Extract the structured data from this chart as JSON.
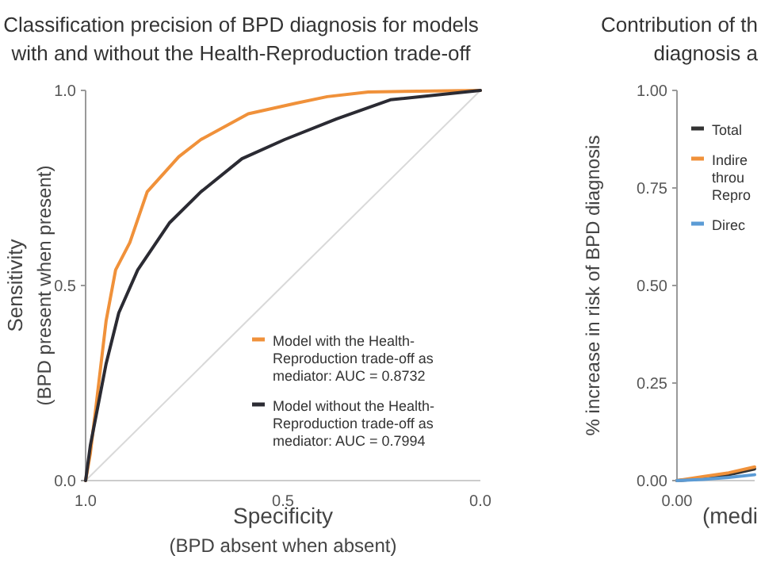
{
  "chart_data": [
    {
      "type": "line",
      "title": "Classification precision of BPD diagnosis for models\nwith and without the Health-Reproduction trade-off",
      "xlabel": "Specificity\n(BPD absent when absent)",
      "ylabel": "Sensitivity\n(BPD present when present)",
      "xlim": [
        1,
        0
      ],
      "xticks": [
        {
          "value": 1,
          "label": "1.0"
        },
        {
          "value": 0.5,
          "label": "0.5"
        },
        {
          "value": 0,
          "label": "0.0"
        }
      ],
      "ylim": [
        0,
        1
      ],
      "yticks": [
        {
          "value": 0,
          "label": "0.0"
        },
        {
          "value": 0.5,
          "label": "0.5"
        },
        {
          "value": 1,
          "label": "1.0"
        }
      ],
      "legend": "bottom right",
      "grid": false,
      "marker": "none",
      "series": [
        {
          "color": "#d9d9d9",
          "x": [
            1,
            0
          ],
          "values": [
            0,
            1
          ]
        },
        {
          "name": "Model with the Health-Reproduction trade-off as mediator: AUC = 0.8732",
          "color": "#f0913a",
          "x": [
            1,
            0.988,
            0.976,
            0.948,
            0.924,
            0.888,
            0.844,
            0.764,
            0.708,
            0.588,
            0.468,
            0.388,
            0.284,
            0
          ],
          "values": [
            0,
            0.07,
            0.17,
            0.41,
            0.54,
            0.61,
            0.74,
            0.83,
            0.874,
            0.94,
            0.967,
            0.984,
            0.996,
            1
          ]
        },
        {
          "name": "Model without the Health-Reproduction trade-off as mediator: AUC = 0.7994",
          "color": "#2b2b33",
          "x": [
            1,
            0.988,
            0.948,
            0.916,
            0.868,
            0.788,
            0.708,
            0.604,
            0.496,
            0.364,
            0.228,
            0
          ],
          "values": [
            0,
            0.09,
            0.3,
            0.43,
            0.54,
            0.66,
            0.74,
            0.825,
            0.874,
            0.927,
            0.976,
            1
          ]
        }
      ]
    },
    {
      "type": "line",
      "title": "Contribution of th\ndiagnosis a",
      "xlabel": "(medi",
      "ylabel": "% increase in risk of BPD diagnosis",
      "categories": [
        "0.00",
        null,
        null,
        null
      ],
      "ylim": [
        0,
        1
      ],
      "yticks": [
        {
          "value": 0,
          "label": "0.00"
        },
        {
          "value": 0.25,
          "label": "0.25"
        },
        {
          "value": 0.5,
          "label": "0.50"
        },
        {
          "value": 0.75,
          "label": "0.75"
        },
        {
          "value": 1,
          "label": "1.00"
        }
      ],
      "legend": "top right",
      "grid": false,
      "marker": "none",
      "series": [
        {
          "name": "Total",
          "color": "#333333",
          "values": [
            0,
            0.005,
            0.015,
            0.03
          ]
        },
        {
          "name": "Indire\nthrou\nRepro",
          "color": "#f0913a",
          "values": [
            0,
            0.01,
            0.02,
            0.035
          ]
        },
        {
          "name": "Direc",
          "color": "#5b9bd5",
          "values": [
            0,
            0.003,
            0.008,
            0.015
          ]
        }
      ]
    }
  ]
}
